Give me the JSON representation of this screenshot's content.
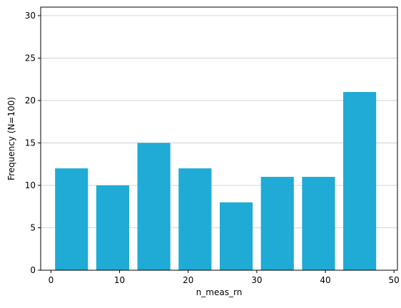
{
  "chart_data": {
    "type": "bar",
    "title": "",
    "xlabel": "n_meas_rn",
    "ylabel": "Frequency (N=100)",
    "bins": [
      {
        "start": 0,
        "end": 6,
        "count": 12
      },
      {
        "start": 6,
        "end": 12,
        "count": 10
      },
      {
        "start": 12,
        "end": 18,
        "count": 15
      },
      {
        "start": 18,
        "end": 24,
        "count": 12
      },
      {
        "start": 24,
        "end": 30,
        "count": 8
      },
      {
        "start": 30,
        "end": 36,
        "count": 11
      },
      {
        "start": 36,
        "end": 42,
        "count": 11
      },
      {
        "start": 42,
        "end": 48,
        "count": 21
      }
    ],
    "values": [
      12,
      10,
      15,
      12,
      8,
      11,
      11,
      21
    ],
    "xlim": [
      -1.5,
      50.5
    ],
    "ylim": [
      0,
      31
    ],
    "xticks": [
      0,
      10,
      20,
      30,
      40,
      50
    ],
    "yticks": [
      0,
      5,
      10,
      15,
      20,
      25,
      30
    ],
    "bar_color": "#1fabd5",
    "grid": "y"
  }
}
